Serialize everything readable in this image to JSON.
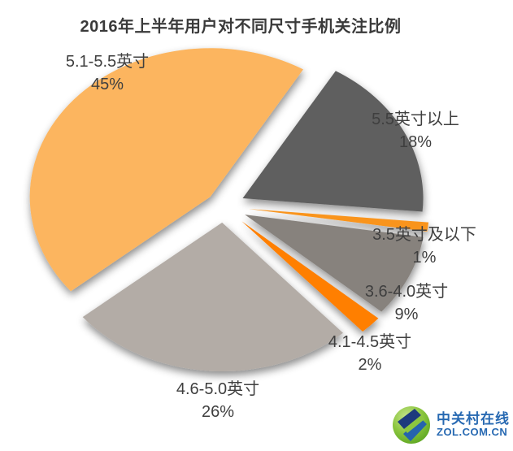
{
  "title": "2016年上半年用户对不同尺寸手机关注比例",
  "chart_data": {
    "type": "pie",
    "title": "2016年上半年用户对不同尺寸手机关注比例",
    "unit": "percent",
    "order": "clockwise from top-right",
    "slices": [
      {
        "label": "5.5英寸以上",
        "value": 18,
        "display": "18%",
        "color": "#5f5f5f"
      },
      {
        "label": "3.5英寸及以下",
        "value": 1,
        "display": "1%",
        "color": "#f9941e"
      },
      {
        "label": "3.6-4.0英寸",
        "value": 9,
        "display": "9%",
        "color": "#87827d"
      },
      {
        "label": "4.1-4.5英寸",
        "value": 2,
        "display": "2%",
        "color": "#ff7f00"
      },
      {
        "label": "4.6-5.0英寸",
        "value": 26,
        "display": "26%",
        "color": "#b3aca6"
      },
      {
        "label": "5.1-5.5英寸",
        "value": 45,
        "display": "45%",
        "color": "#fcb55e"
      }
    ],
    "layout_hints": {
      "exploded": true,
      "labels": "outside, two lines (name above percent)",
      "legend": "none",
      "shadow": true
    }
  },
  "watermark": {
    "name": "中关村在线",
    "url": "ZOL.COM.CN"
  }
}
